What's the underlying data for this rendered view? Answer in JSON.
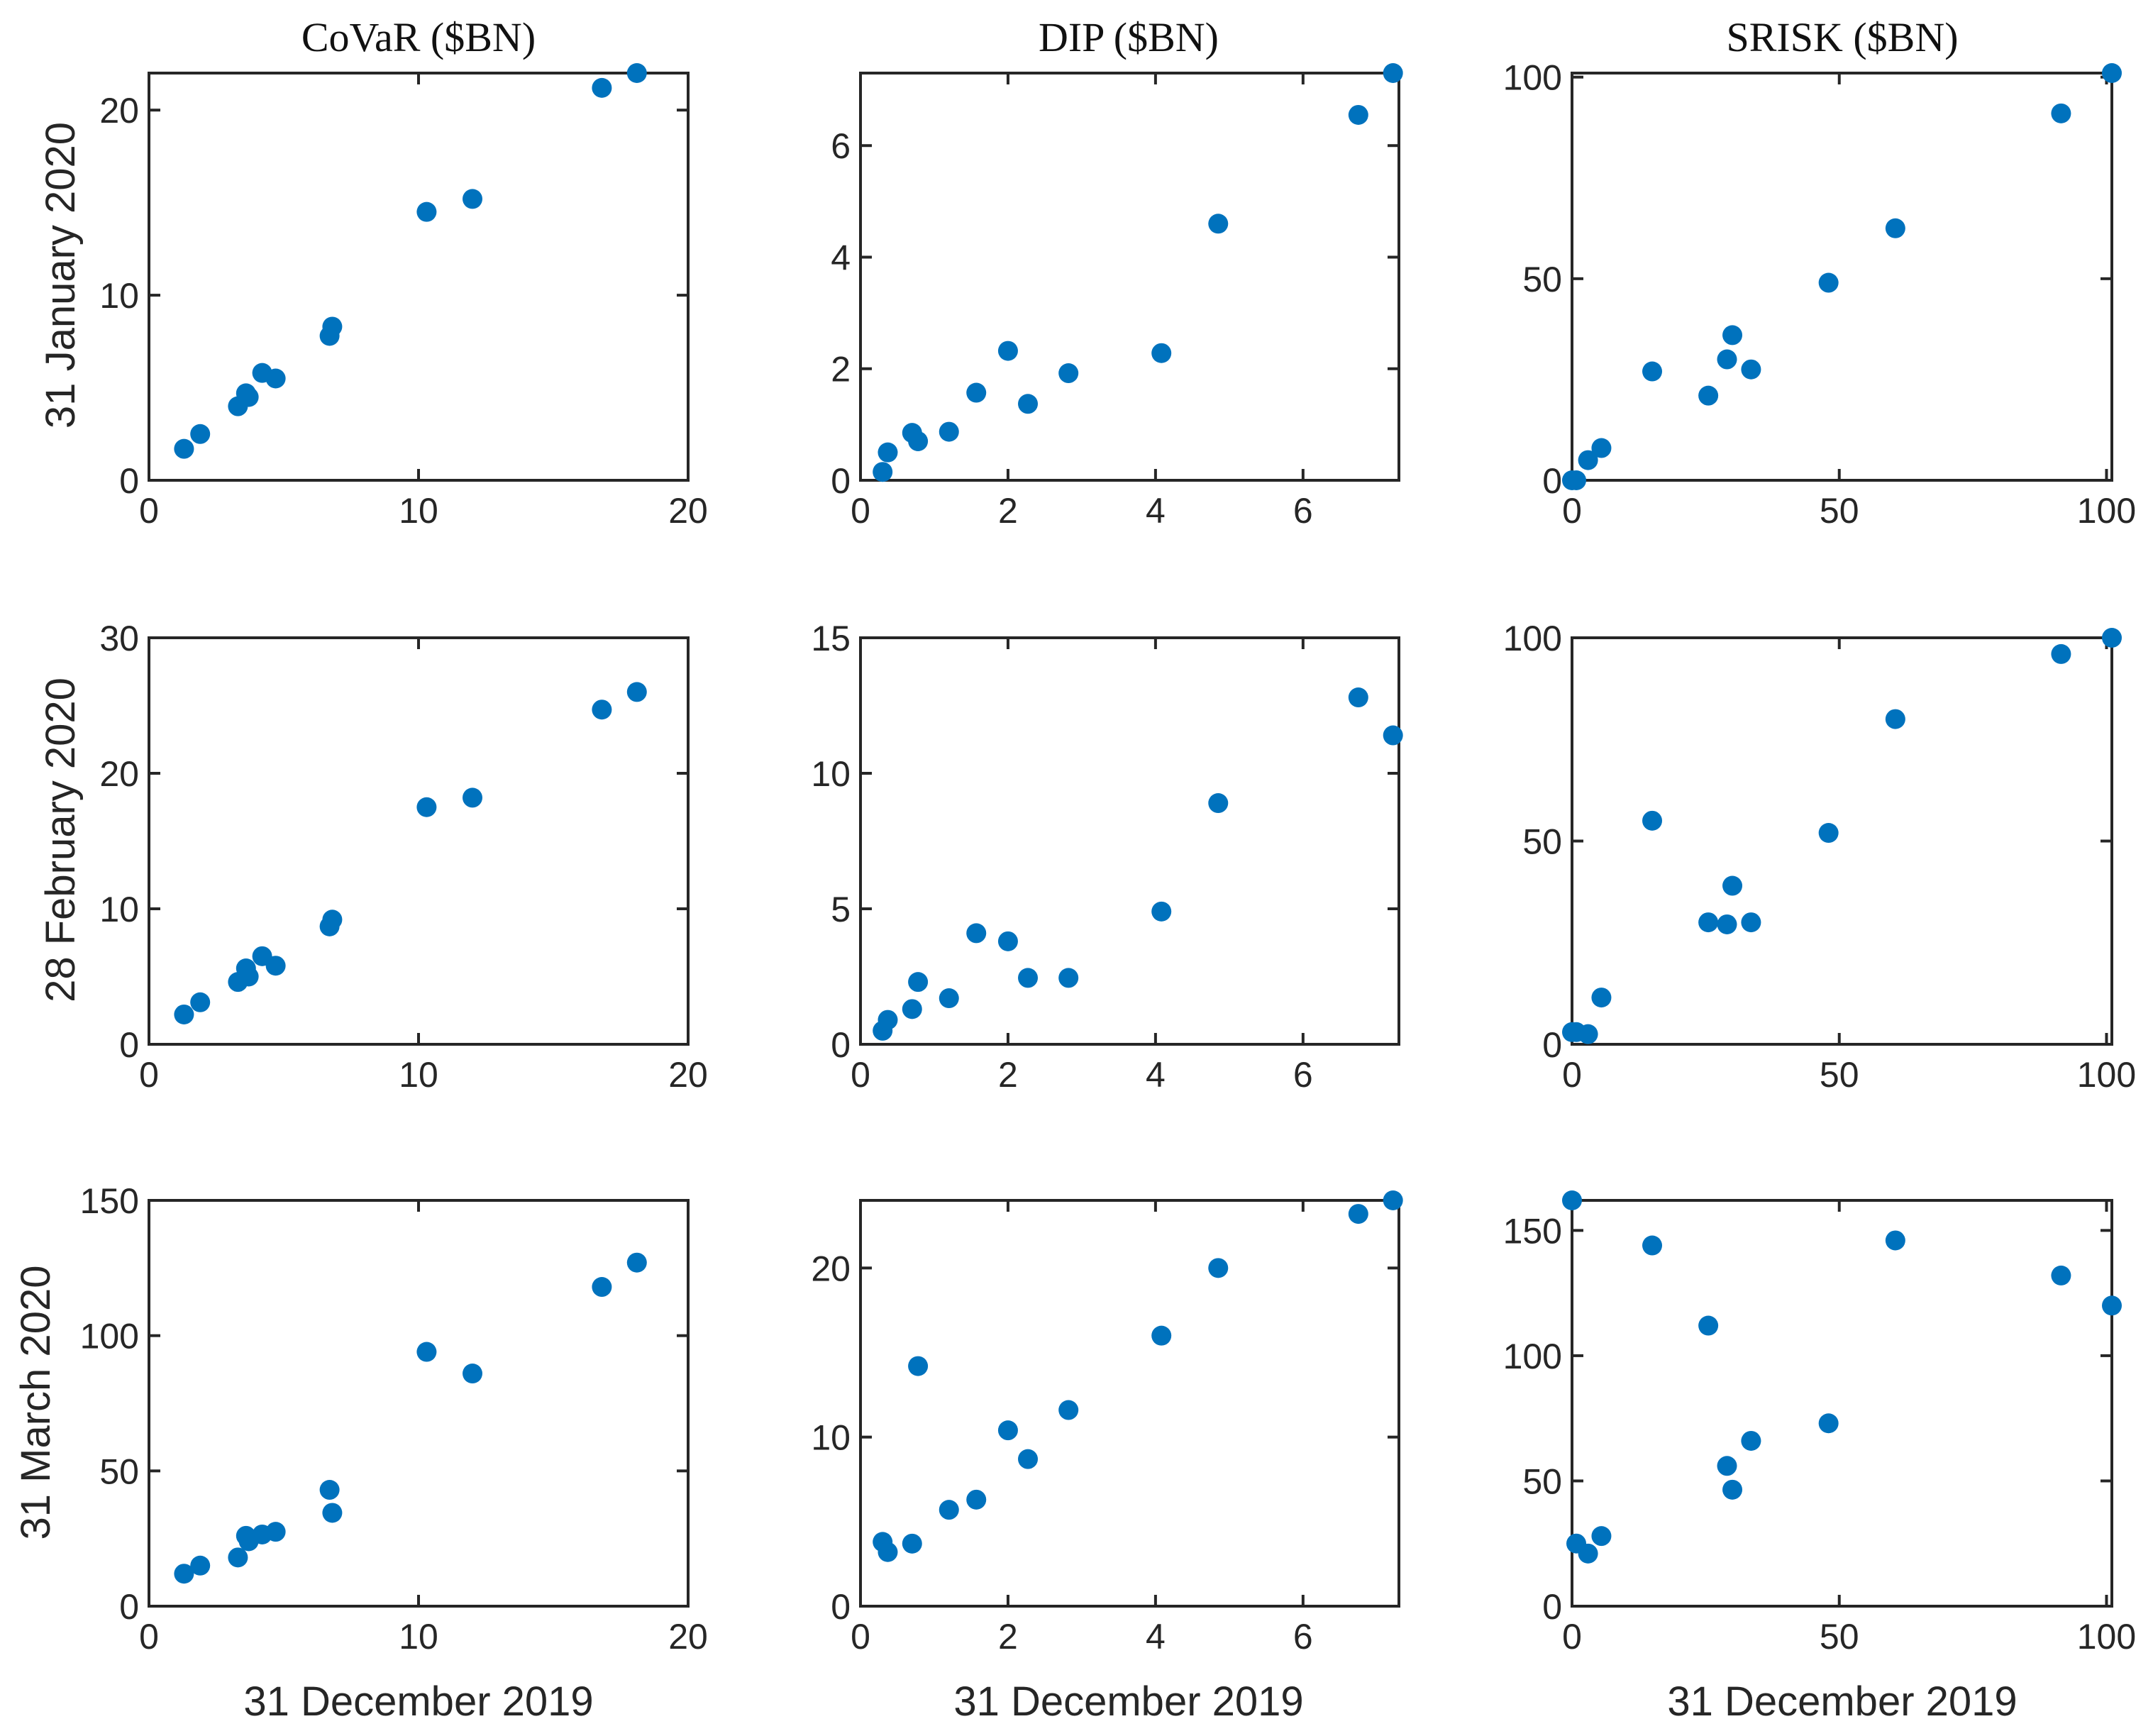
{
  "colors": {
    "marker": "#0072BD",
    "axis": "#262626"
  },
  "figure": {
    "column_titles": [
      "CoVaR ($BN)",
      "DIP ($BN)",
      "SRISK ($BN)"
    ],
    "row_labels": [
      "31 January 2020",
      "28 February 2020",
      "31 March 2020"
    ],
    "xlabel": "31 December 2019"
  },
  "chart_data": [
    {
      "type": "scatter",
      "row": 0,
      "col": 0,
      "title": "CoVaR ($BN)",
      "xlabel": "",
      "ylabel": "31 January 2020",
      "xlim": [
        0,
        20
      ],
      "ylim": [
        0,
        22
      ],
      "xticks": [
        0,
        10,
        20
      ],
      "yticks": [
        0,
        10,
        20
      ],
      "x": [
        1.3,
        1.9,
        3.3,
        3.6,
        3.7,
        4.2,
        4.7,
        6.7,
        6.8,
        10.3,
        12.0,
        16.8,
        18.1
      ],
      "y": [
        1.7,
        2.5,
        4.0,
        4.7,
        4.5,
        5.8,
        5.5,
        7.8,
        8.3,
        14.5,
        15.2,
        21.2,
        22.0
      ]
    },
    {
      "type": "scatter",
      "row": 0,
      "col": 1,
      "title": "DIP ($BN)",
      "xlabel": "",
      "ylabel": "",
      "xlim": [
        0,
        7.3
      ],
      "ylim": [
        0,
        7.3
      ],
      "xticks": [
        0,
        2,
        4,
        6
      ],
      "yticks": [
        0,
        2,
        4,
        6
      ],
      "x": [
        0.3,
        0.37,
        0.7,
        0.78,
        1.2,
        1.57,
        2.0,
        2.27,
        2.82,
        4.08,
        4.85,
        6.75,
        7.22
      ],
      "y": [
        0.15,
        0.5,
        0.85,
        0.7,
        0.87,
        1.57,
        2.32,
        1.37,
        1.92,
        2.28,
        4.6,
        6.55,
        7.3
      ]
    },
    {
      "type": "scatter",
      "row": 0,
      "col": 2,
      "title": "SRISK ($BN)",
      "xlabel": "",
      "ylabel": "",
      "xlim": [
        0,
        101
      ],
      "ylim": [
        0,
        101
      ],
      "xticks": [
        0,
        50,
        100
      ],
      "yticks": [
        0,
        50,
        100
      ],
      "x": [
        0.0,
        0.8,
        3.0,
        5.5,
        15.0,
        25.5,
        29.0,
        30.0,
        33.5,
        48.0,
        60.5,
        91.5,
        101.0
      ],
      "y": [
        0.0,
        0.0,
        5.0,
        8.0,
        27.0,
        21.0,
        30.0,
        36.0,
        27.5,
        49.0,
        62.5,
        91.0,
        101.0
      ]
    },
    {
      "type": "scatter",
      "row": 1,
      "col": 0,
      "title": "",
      "xlabel": "",
      "ylabel": "28 February 2020",
      "xlim": [
        0,
        20
      ],
      "ylim": [
        0,
        30
      ],
      "xticks": [
        0,
        10,
        20
      ],
      "yticks": [
        0,
        10,
        20,
        30
      ],
      "x": [
        1.3,
        1.9,
        3.3,
        3.6,
        3.7,
        4.2,
        4.7,
        6.7,
        6.8,
        10.3,
        12.0,
        16.8,
        18.1
      ],
      "y": [
        2.2,
        3.1,
        4.6,
        5.6,
        5.0,
        6.5,
        5.8,
        8.7,
        9.2,
        17.5,
        18.2,
        24.7,
        26.0
      ]
    },
    {
      "type": "scatter",
      "row": 1,
      "col": 1,
      "title": "",
      "xlabel": "",
      "ylabel": "",
      "xlim": [
        0,
        7.3
      ],
      "ylim": [
        0,
        15
      ],
      "xticks": [
        0,
        2,
        4,
        6
      ],
      "yticks": [
        0,
        5,
        10,
        15
      ],
      "x": [
        0.3,
        0.37,
        0.7,
        0.78,
        1.2,
        1.57,
        2.0,
        2.27,
        2.82,
        4.08,
        4.85,
        6.75,
        7.22
      ],
      "y": [
        0.5,
        0.9,
        1.3,
        2.3,
        1.7,
        4.1,
        3.8,
        2.45,
        2.45,
        4.9,
        8.9,
        12.8,
        11.4
      ]
    },
    {
      "type": "scatter",
      "row": 1,
      "col": 2,
      "title": "",
      "xlabel": "",
      "ylabel": "",
      "xlim": [
        0,
        101
      ],
      "ylim": [
        0,
        100
      ],
      "xticks": [
        0,
        50,
        100
      ],
      "yticks": [
        0,
        50,
        100
      ],
      "x": [
        0.0,
        0.8,
        3.0,
        5.5,
        15.0,
        25.5,
        29.0,
        30.0,
        33.5,
        48.0,
        60.5,
        91.5,
        101.0
      ],
      "y": [
        3.0,
        3.0,
        2.5,
        11.5,
        55.0,
        30.0,
        29.5,
        39.0,
        30.0,
        52.0,
        80.0,
        96.0,
        100.0
      ]
    },
    {
      "type": "scatter",
      "row": 2,
      "col": 0,
      "title": "",
      "xlabel": "31 December 2019",
      "ylabel": "31 March 2020",
      "xlim": [
        0,
        20
      ],
      "ylim": [
        0,
        150
      ],
      "xticks": [
        0,
        10,
        20
      ],
      "yticks": [
        0,
        50,
        100,
        150
      ],
      "x": [
        1.3,
        1.9,
        3.3,
        3.6,
        3.7,
        4.2,
        4.7,
        6.7,
        6.8,
        10.3,
        12.0,
        16.8,
        18.1
      ],
      "y": [
        12.0,
        15.0,
        18.0,
        26.0,
        24.0,
        26.5,
        27.5,
        43.0,
        34.5,
        94.0,
        86.0,
        118.0,
        127.0
      ]
    },
    {
      "type": "scatter",
      "row": 2,
      "col": 1,
      "title": "",
      "xlabel": "31 December 2019",
      "ylabel": "",
      "xlim": [
        0,
        7.3
      ],
      "ylim": [
        0,
        24
      ],
      "xticks": [
        0,
        2,
        4,
        6
      ],
      "yticks": [
        0,
        10,
        20
      ],
      "x": [
        0.3,
        0.37,
        0.7,
        0.78,
        1.2,
        1.57,
        2.0,
        2.27,
        2.82,
        4.08,
        4.85,
        6.75,
        7.22
      ],
      "y": [
        3.8,
        3.2,
        3.7,
        14.2,
        5.7,
        6.3,
        10.4,
        8.7,
        11.6,
        16.0,
        20.0,
        23.2,
        24.0
      ]
    },
    {
      "type": "scatter",
      "row": 2,
      "col": 2,
      "title": "",
      "xlabel": "31 December 2019",
      "ylabel": "",
      "xlim": [
        0,
        101
      ],
      "ylim": [
        0,
        162
      ],
      "xticks": [
        0,
        50,
        100
      ],
      "yticks": [
        0,
        50,
        100,
        150
      ],
      "x": [
        0.0,
        0.8,
        3.0,
        5.5,
        15.0,
        25.5,
        29.0,
        30.0,
        33.5,
        48.0,
        60.5,
        91.5,
        101.0
      ],
      "y": [
        162.0,
        25.0,
        21.0,
        28.0,
        144.0,
        112.0,
        56.0,
        46.5,
        66.0,
        73.0,
        146.0,
        132.0,
        120.0
      ]
    }
  ]
}
